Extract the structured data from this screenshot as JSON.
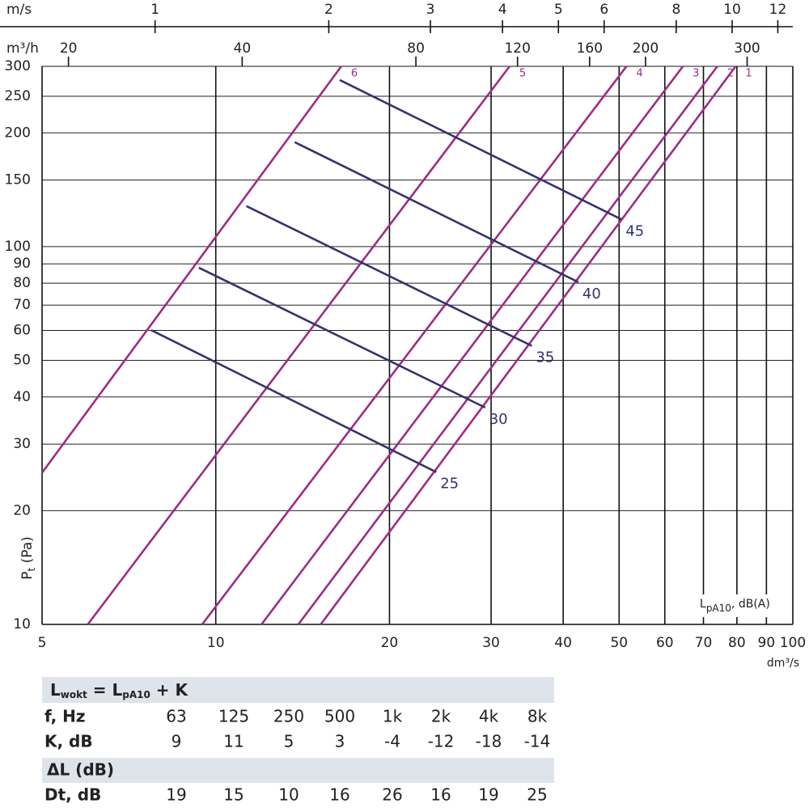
{
  "chart_data": {
    "type": "line",
    "x_label": "dm³/s",
    "y_label": [
      "P",
      "t",
      " (Pa)"
    ],
    "annotation": [
      "L",
      "pA10",
      ", dB(A)"
    ],
    "log_x": true,
    "log_y": true,
    "grid": true,
    "xlim": [
      5,
      100
    ],
    "xticks": [
      5,
      10,
      20,
      30,
      40,
      50,
      60,
      70,
      80,
      90,
      100
    ],
    "ylim": [
      10,
      300
    ],
    "yticks": [
      10,
      20,
      30,
      40,
      50,
      60,
      70,
      80,
      90,
      100,
      150,
      200,
      250,
      300
    ],
    "top_axes": [
      {
        "label": "m/s",
        "xlim": [
          0.637,
          12.74
        ],
        "xticks": [
          1,
          2,
          3,
          4,
          5,
          6,
          8,
          10,
          12
        ]
      },
      {
        "label": "m³/h",
        "xlim": [
          18,
          360
        ],
        "xticks": [
          20,
          40,
          80,
          120,
          160,
          200,
          300
        ]
      }
    ],
    "series": [
      {
        "name": "1",
        "color": "#9b2d86",
        "x": [
          15.2,
          79.6
        ],
        "values": [
          10,
          300
        ]
      },
      {
        "name": "2",
        "color": "#9b2d86",
        "x": [
          13.9,
          74
        ],
        "values": [
          10,
          300
        ]
      },
      {
        "name": "3",
        "color": "#9b2d86",
        "x": [
          12.0,
          64.5
        ],
        "values": [
          10,
          300
        ]
      },
      {
        "name": "4",
        "color": "#9b2d86",
        "x": [
          9.47,
          51.5
        ],
        "values": [
          10,
          300
        ]
      },
      {
        "name": "5",
        "color": "#9b2d86",
        "x": [
          6.0,
          32.3
        ],
        "values": [
          10,
          300
        ]
      },
      {
        "name": "6",
        "color": "#9b2d86",
        "x": [
          5,
          16.5
        ],
        "values": [
          25.2,
          300
        ]
      },
      {
        "name": "25",
        "color": "#34336e",
        "x": [
          7.73,
          24.1
        ],
        "values": [
          60.1,
          25.3
        ]
      },
      {
        "name": "30",
        "color": "#34336e",
        "x": [
          9.35,
          29.3
        ],
        "values": [
          87.9,
          37.5
        ]
      },
      {
        "name": "35",
        "color": "#34336e",
        "x": [
          11.3,
          35.3
        ],
        "values": [
          128,
          54.6
        ]
      },
      {
        "name": "40",
        "color": "#34336e",
        "x": [
          13.7,
          42.5
        ],
        "values": [
          189,
          80.5
        ]
      },
      {
        "name": "45",
        "color": "#34336e",
        "x": [
          16.4,
          50.5
        ],
        "values": [
          276,
          118
        ]
      }
    ]
  },
  "table": {
    "formula": [
      "L",
      "wokt",
      " = L",
      "pA10",
      " + K"
    ],
    "f_label": "f, Hz",
    "frequencies": [
      "63",
      "125",
      "250",
      "500",
      "1k",
      "2k",
      "4k",
      "8k"
    ],
    "k_label": "K, dB",
    "k_values": [
      9,
      11,
      5,
      3,
      -4,
      -12,
      -18,
      -14
    ],
    "delta_title": "ΔL (dB)",
    "dt_label": "Dt, dB",
    "dt_values": [
      19,
      15,
      10,
      16,
      26,
      16,
      19,
      25
    ]
  }
}
